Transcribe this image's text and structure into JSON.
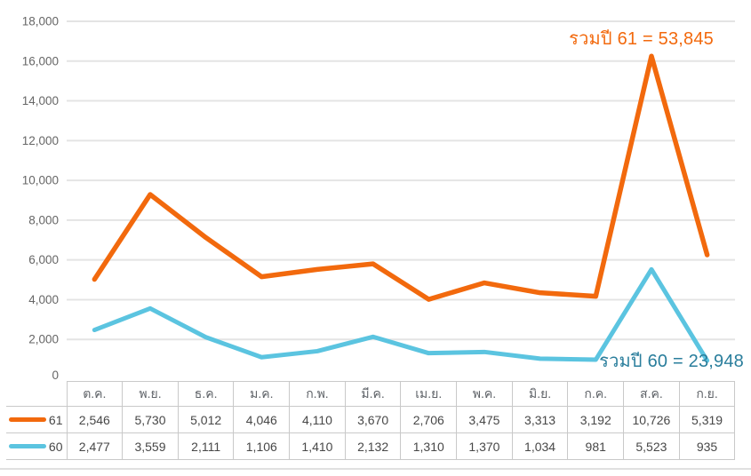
{
  "chart_data": {
    "type": "line",
    "title": "",
    "xlabel": "",
    "ylabel": "",
    "categories": [
      "ต.ค.",
      "พ.ย.",
      "ธ.ค.",
      "ม.ค.",
      "ก.พ.",
      "มี.ค.",
      "เม.ย.",
      "พ.ค.",
      "มิ.ย.",
      "ก.ค.",
      "ส.ค.",
      "ก.ย."
    ],
    "series": [
      {
        "name": "61",
        "color": "#f2690d",
        "values": [
          2546,
          5730,
          5012,
          4046,
          4110,
          3670,
          2706,
          3475,
          3313,
          3192,
          10726,
          5319
        ]
      },
      {
        "name": "60",
        "color": "#5bc4e0",
        "values": [
          2477,
          3559,
          2111,
          1106,
          1410,
          2132,
          1310,
          1370,
          1034,
          981,
          5523,
          935
        ]
      }
    ],
    "y_ticks": [
      0,
      2000,
      4000,
      6000,
      8000,
      10000,
      12000,
      14000,
      16000,
      18000
    ],
    "ylim": [
      0,
      18000
    ],
    "grid": true,
    "legend_position": "table-left-column",
    "render_note": "line for series 61 is drawn stacked on top of series 60 (cumulative values); table shows raw per-series values",
    "annotations": [
      {
        "text": "รวมปี 61 = 53,845",
        "color": "#f2690d"
      },
      {
        "text": "รวมปี 60 = 23,948",
        "color": "#2a7e9c"
      }
    ]
  }
}
